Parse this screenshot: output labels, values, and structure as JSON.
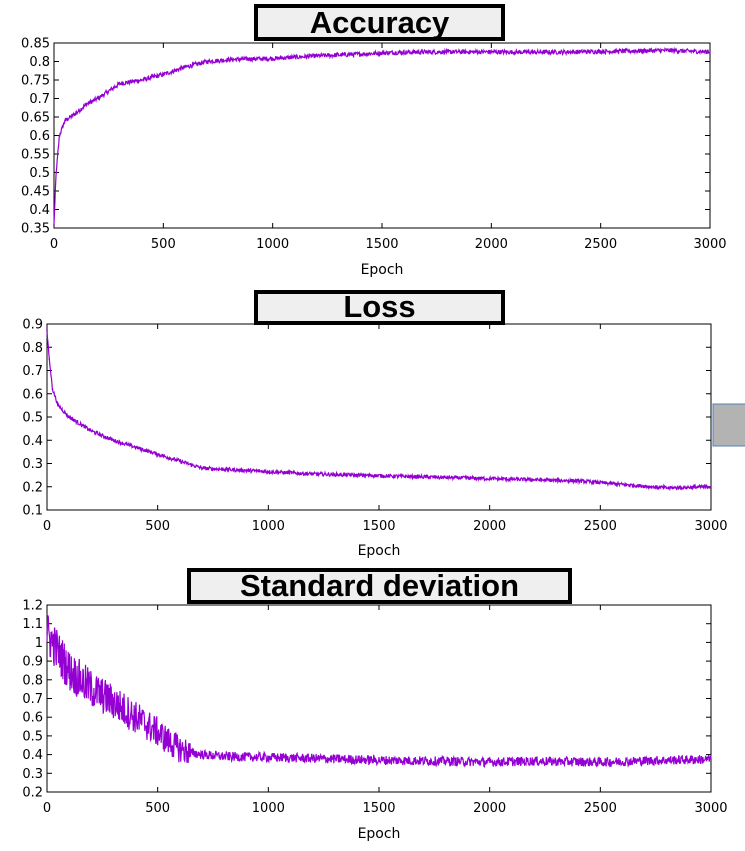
{
  "chart_data": [
    {
      "type": "line",
      "title": "Accuracy",
      "xlabel": "Epoch",
      "ylabel": "",
      "xlim": [
        0,
        3000
      ],
      "ylim": [
        0.35,
        0.85
      ],
      "xticks": [
        "0",
        "500",
        "1000",
        "1500",
        "2000",
        "2500",
        "3000"
      ],
      "yticks": [
        "0.35",
        "0.4",
        "0.45",
        "0.5",
        "0.55",
        "0.6",
        "0.65",
        "0.7",
        "0.75",
        "0.8",
        "0.85"
      ],
      "grid": false,
      "color": "#9400d3",
      "series": [
        {
          "x": [
            0,
            10,
            25,
            50,
            100,
            150,
            200,
            300,
            400,
            500,
            600,
            700,
            800,
            900,
            1000,
            1200,
            1400,
            1500,
            1600,
            1800,
            2000,
            2200,
            2400,
            2600,
            2800,
            3000
          ],
          "values": [
            0.36,
            0.5,
            0.6,
            0.64,
            0.66,
            0.685,
            0.7,
            0.74,
            0.75,
            0.765,
            0.785,
            0.8,
            0.805,
            0.807,
            0.808,
            0.815,
            0.82,
            0.823,
            0.825,
            0.826,
            0.826,
            0.825,
            0.826,
            0.828,
            0.83,
            0.826
          ]
        }
      ]
    },
    {
      "type": "line",
      "title": "Loss",
      "xlabel": "Epoch",
      "ylabel": "",
      "xlim": [
        0,
        3000
      ],
      "ylim": [
        0.1,
        0.9
      ],
      "xticks": [
        "0",
        "500",
        "1000",
        "1500",
        "2000",
        "2500",
        "3000"
      ],
      "yticks": [
        "0.1",
        "0.2",
        "0.3",
        "0.4",
        "0.5",
        "0.6",
        "0.7",
        "0.8",
        "0.9"
      ],
      "grid": false,
      "color": "#9400d3",
      "series": [
        {
          "x": [
            0,
            10,
            25,
            50,
            100,
            200,
            300,
            400,
            500,
            600,
            700,
            800,
            900,
            1000,
            1200,
            1400,
            1600,
            1800,
            2000,
            2200,
            2400,
            2600,
            2800,
            3000
          ],
          "values": [
            0.87,
            0.75,
            0.62,
            0.55,
            0.5,
            0.44,
            0.4,
            0.37,
            0.34,
            0.31,
            0.28,
            0.275,
            0.27,
            0.265,
            0.255,
            0.25,
            0.245,
            0.24,
            0.235,
            0.23,
            0.225,
            0.21,
            0.195,
            0.2
          ]
        }
      ]
    },
    {
      "type": "line",
      "title": "Standard deviation",
      "xlabel": "Epoch",
      "ylabel": "",
      "xlim": [
        0,
        3000
      ],
      "ylim": [
        0.2,
        1.2
      ],
      "xticks": [
        "0",
        "500",
        "1000",
        "1500",
        "2000",
        "2500",
        "3000"
      ],
      "yticks": [
        "0.2",
        "0.3",
        "0.4",
        "0.5",
        "0.6",
        "0.7",
        "0.8",
        "0.9",
        "1",
        "1.1",
        "1.2"
      ],
      "grid": false,
      "color": "#9400d3",
      "series": [
        {
          "x": [
            0,
            50,
            100,
            200,
            300,
            400,
            500,
            550,
            600,
            650,
            700,
            800,
            1000,
            1200,
            1500,
            1800,
            2000,
            2200,
            2500,
            2800,
            3000
          ],
          "values": [
            1.05,
            0.95,
            0.85,
            0.75,
            0.68,
            0.6,
            0.52,
            0.47,
            0.43,
            0.41,
            0.4,
            0.39,
            0.385,
            0.38,
            0.37,
            0.365,
            0.36,
            0.365,
            0.36,
            0.37,
            0.375
          ]
        }
      ]
    }
  ]
}
